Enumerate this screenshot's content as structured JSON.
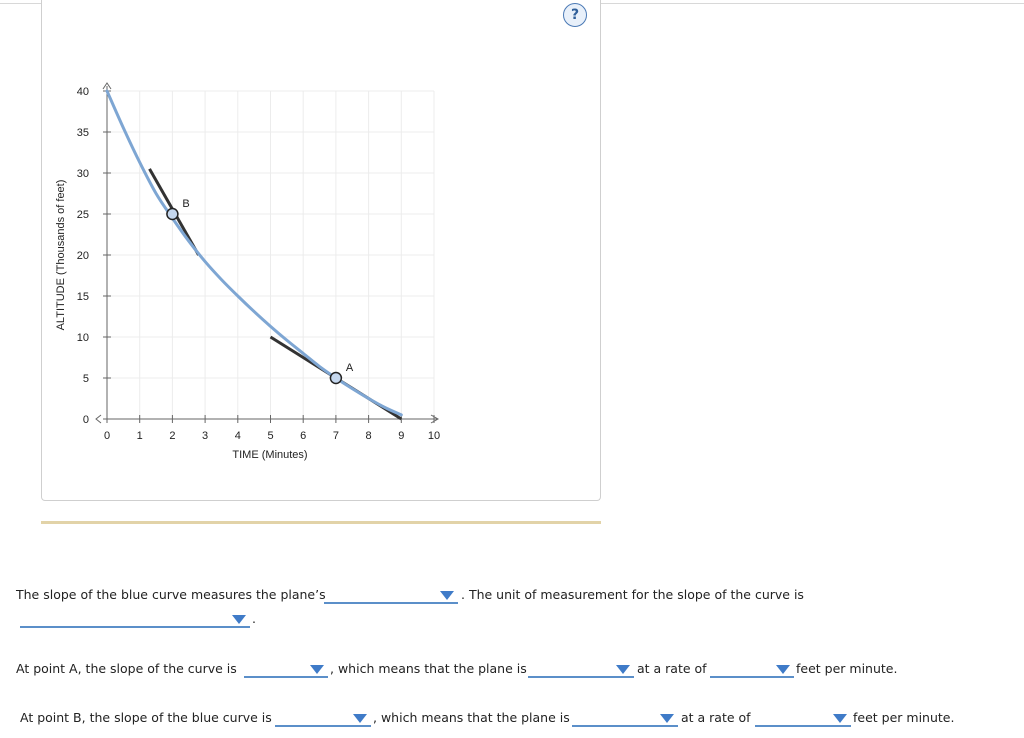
{
  "help": {
    "symbol": "?"
  },
  "chart_data": {
    "type": "line",
    "xlabel": "TIME (Minutes)",
    "ylabel": "ALTITUDE (Thousands of feet)",
    "xlim": [
      0,
      10
    ],
    "ylim": [
      0,
      40
    ],
    "x_ticks": [
      "0",
      "1",
      "2",
      "3",
      "4",
      "5",
      "6",
      "7",
      "8",
      "9",
      "10"
    ],
    "y_ticks": [
      "0",
      "5",
      "10",
      "15",
      "20",
      "25",
      "30",
      "35",
      "40"
    ],
    "grid": true,
    "curve": {
      "color": "#7ea6d3",
      "points": [
        [
          0,
          40
        ],
        [
          0.5,
          35.5
        ],
        [
          1,
          31.3
        ],
        [
          1.5,
          27.5
        ],
        [
          2,
          24.5
        ],
        [
          2.5,
          21.7
        ],
        [
          3,
          19.2
        ],
        [
          3.5,
          17
        ],
        [
          4,
          15
        ],
        [
          4.5,
          13.1
        ],
        [
          5,
          11.3
        ],
        [
          5.5,
          9.6
        ],
        [
          6,
          8
        ],
        [
          6.5,
          6.4
        ],
        [
          7,
          5
        ],
        [
          7.5,
          3.7
        ],
        [
          8,
          2.5
        ],
        [
          8.5,
          1.4
        ],
        [
          9,
          0.5
        ]
      ]
    },
    "tangents": [
      {
        "x1": 5,
        "y1": 10,
        "x2": 9,
        "y2": 0,
        "color": "#333333"
      },
      {
        "x1": 1.3,
        "y1": 30.5,
        "x2": 2.8,
        "y2": 20,
        "color": "#333333"
      }
    ],
    "points": [
      {
        "label": "A",
        "x": 7,
        "y": 5
      },
      {
        "label": "B",
        "x": 2,
        "y": 25
      }
    ]
  },
  "q1": {
    "text_before": "The slope of the blue curve measures the plane’s",
    "text_after": ". The unit of measurement for the slope of the curve is",
    "period": "."
  },
  "q2": {
    "text_a": "At point A, the slope of the curve is",
    "text_b": ", which means that the plane is",
    "text_c": "at a rate of",
    "text_d": "feet per minute."
  },
  "q3": {
    "text_a": "At point B, the slope of the blue curve is",
    "text_b": ", which means that the plane is",
    "text_c": "at a rate of",
    "text_d": "feet per minute."
  }
}
